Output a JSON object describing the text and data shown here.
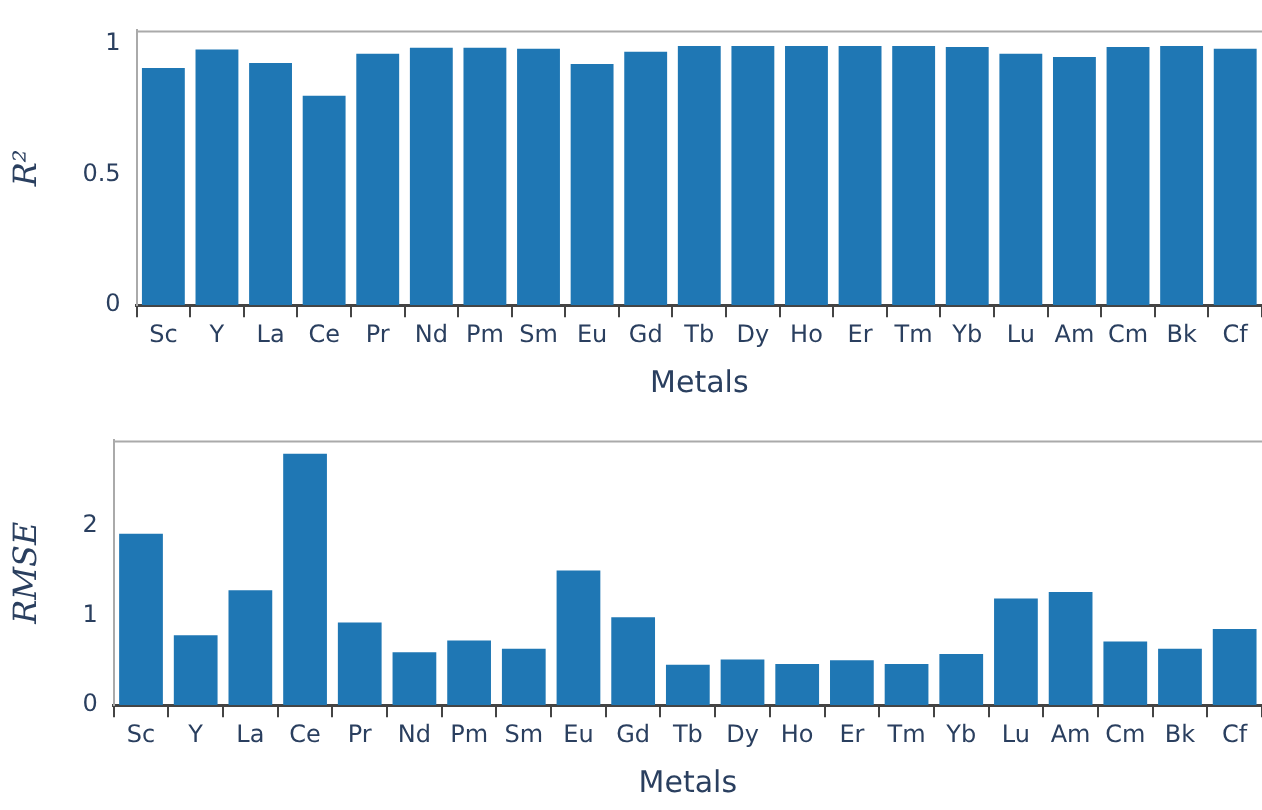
{
  "chart_data": [
    {
      "type": "bar",
      "categories": [
        "Sc",
        "Y",
        "La",
        "Ce",
        "Pr",
        "Nd",
        "Pm",
        "Sm",
        "Eu",
        "Gd",
        "Tb",
        "Dy",
        "Ho",
        "Er",
        "Tm",
        "Yb",
        "Lu",
        "Am",
        "Cm",
        "Bk",
        "Cf"
      ],
      "values": [
        0.906,
        0.977,
        0.925,
        0.8,
        0.961,
        0.984,
        0.984,
        0.98,
        0.922,
        0.968,
        0.99,
        0.99,
        0.99,
        0.99,
        0.99,
        0.987,
        0.961,
        0.948,
        0.987,
        0.99,
        0.98
      ],
      "color": "#1f77b4",
      "xlabel": "Metals",
      "ylabel": "R²",
      "ylim": [
        0,
        1.05
      ],
      "yticks": [
        0,
        0.5,
        1
      ],
      "grid": false
    },
    {
      "type": "bar",
      "categories": [
        "Sc",
        "Y",
        "La",
        "Ce",
        "Pr",
        "Nd",
        "Pm",
        "Sm",
        "Eu",
        "Gd",
        "Tb",
        "Dy",
        "Ho",
        "Er",
        "Tm",
        "Yb",
        "Lu",
        "Am",
        "Cm",
        "Bk",
        "Cf"
      ],
      "values": [
        1.91,
        0.78,
        1.28,
        2.8,
        0.92,
        0.59,
        0.72,
        0.63,
        1.5,
        0.98,
        0.45,
        0.51,
        0.46,
        0.5,
        0.46,
        0.57,
        1.19,
        1.26,
        0.71,
        0.63,
        0.85
      ],
      "color": "#1f77b4",
      "xlabel": "Metals",
      "ylabel": "RMSE",
      "ylim": [
        0,
        2.95
      ],
      "yticks": [
        0,
        1,
        2
      ],
      "grid": false
    }
  ]
}
